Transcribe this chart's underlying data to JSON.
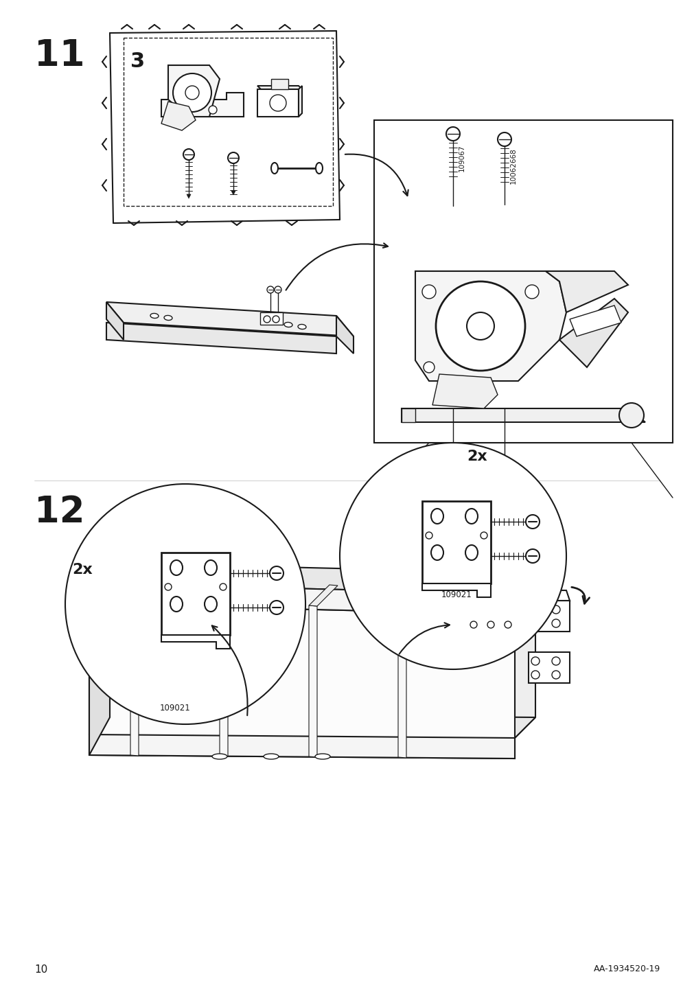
{
  "bg_color": "#ffffff",
  "line_color": "#1a1a1a",
  "page_number": "10",
  "doc_code": "AA-1934520-19",
  "step11_label": "11",
  "step12_label": "12",
  "part_number_bag": "3",
  "screw_id1": "109067",
  "screw_id2": "10062668",
  "screw_id3": "109021",
  "qty_2x": "2x"
}
